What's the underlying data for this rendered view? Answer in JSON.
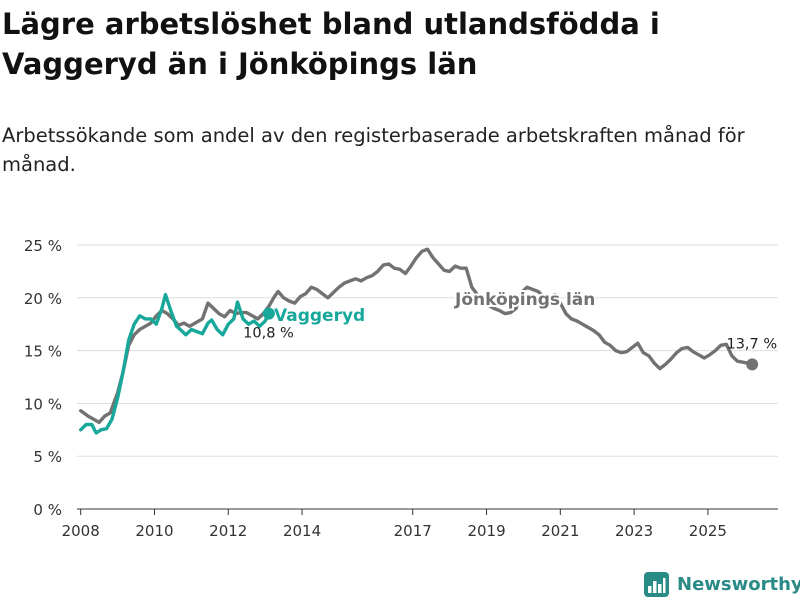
{
  "header": {
    "title": "Lägre arbetslöshet bland utlandsfödda i Vaggeryd än i Jönköpings län",
    "subtitle": "Arbetssökande som andel av den registerbaserade arbetskraften månad för månad."
  },
  "brand": {
    "name": "Newsworthy",
    "icon": "newsworthy-logo-icon",
    "color": "#2a8a86"
  },
  "chart_data": {
    "type": "line",
    "title": "Lägre arbetslöshet bland utlandsfödda i Vaggeryd än i Jönköpings län",
    "subtitle": "Arbetssökande som andel av den registerbaserade arbetskraften månad för månad.",
    "xlabel": "",
    "ylabel": "",
    "xlim": [
      2007.9,
      2026.9
    ],
    "ylim": [
      0,
      25
    ],
    "y_ticks": [
      0,
      5,
      10,
      15,
      20,
      25
    ],
    "y_tick_labels": [
      "0 %",
      "5 %",
      "10 %",
      "15 %",
      "20 %",
      "25 %"
    ],
    "x_ticks": [
      2008,
      2010,
      2012,
      2014,
      2017,
      2019,
      2021,
      2023,
      2025
    ],
    "x_tick_labels": [
      "2008",
      "2010",
      "2012",
      "2014",
      "2017",
      "2019",
      "2021",
      "2023",
      "2025"
    ],
    "grid": true,
    "series": [
      {
        "name": "Jönköpings län",
        "color": "#727272",
        "end_label": "13,7 %",
        "label_text": "Jönköpings län",
        "points": [
          [
            2008.0,
            9.3
          ],
          [
            2008.2,
            8.8
          ],
          [
            2008.35,
            8.5
          ],
          [
            2008.5,
            8.2
          ],
          [
            2008.65,
            8.8
          ],
          [
            2008.8,
            9.1
          ],
          [
            2009.0,
            11.0
          ],
          [
            2009.15,
            13.0
          ],
          [
            2009.3,
            15.5
          ],
          [
            2009.45,
            16.5
          ],
          [
            2009.6,
            17.0
          ],
          [
            2009.75,
            17.3
          ],
          [
            2009.9,
            17.6
          ],
          [
            2010.05,
            18.3
          ],
          [
            2010.2,
            18.8
          ],
          [
            2010.35,
            18.5
          ],
          [
            2010.5,
            18.0
          ],
          [
            2010.65,
            17.4
          ],
          [
            2010.8,
            17.6
          ],
          [
            2010.95,
            17.3
          ],
          [
            2011.1,
            17.6
          ],
          [
            2011.3,
            18.0
          ],
          [
            2011.45,
            19.5
          ],
          [
            2011.6,
            19.0
          ],
          [
            2011.75,
            18.5
          ],
          [
            2011.9,
            18.2
          ],
          [
            2012.05,
            18.8
          ],
          [
            2012.2,
            18.5
          ],
          [
            2012.35,
            18.6
          ],
          [
            2012.5,
            18.6
          ],
          [
            2012.65,
            18.3
          ],
          [
            2012.8,
            18.0
          ],
          [
            2012.95,
            18.5
          ],
          [
            2013.1,
            19.2
          ],
          [
            2013.25,
            20.1
          ],
          [
            2013.35,
            20.6
          ],
          [
            2013.5,
            20.0
          ],
          [
            2013.65,
            19.7
          ],
          [
            2013.8,
            19.5
          ],
          [
            2013.95,
            20.1
          ],
          [
            2014.1,
            20.4
          ],
          [
            2014.25,
            21.0
          ],
          [
            2014.4,
            20.8
          ],
          [
            2014.55,
            20.4
          ],
          [
            2014.7,
            20.0
          ],
          [
            2014.85,
            20.5
          ],
          [
            2015.0,
            21.0
          ],
          [
            2015.15,
            21.4
          ],
          [
            2015.3,
            21.6
          ],
          [
            2015.45,
            21.8
          ],
          [
            2015.6,
            21.6
          ],
          [
            2015.75,
            21.9
          ],
          [
            2015.9,
            22.1
          ],
          [
            2016.05,
            22.5
          ],
          [
            2016.2,
            23.1
          ],
          [
            2016.35,
            23.2
          ],
          [
            2016.5,
            22.8
          ],
          [
            2016.65,
            22.7
          ],
          [
            2016.8,
            22.3
          ],
          [
            2016.95,
            23.0
          ],
          [
            2017.1,
            23.8
          ],
          [
            2017.25,
            24.4
          ],
          [
            2017.4,
            24.6
          ],
          [
            2017.55,
            23.8
          ],
          [
            2017.7,
            23.2
          ],
          [
            2017.85,
            22.6
          ],
          [
            2018.0,
            22.5
          ],
          [
            2018.15,
            23.0
          ],
          [
            2018.3,
            22.8
          ],
          [
            2018.45,
            22.8
          ],
          [
            2018.6,
            21.0
          ],
          [
            2018.75,
            20.3
          ],
          [
            2018.9,
            19.8
          ],
          [
            2019.05,
            19.3
          ],
          [
            2019.2,
            19.0
          ],
          [
            2019.35,
            18.8
          ],
          [
            2019.5,
            18.5
          ],
          [
            2019.65,
            18.6
          ],
          [
            2019.8,
            19.0
          ],
          [
            2019.95,
            20.5
          ],
          [
            2020.1,
            21.0
          ],
          [
            2020.25,
            20.8
          ],
          [
            2020.4,
            20.6
          ],
          [
            2020.55,
            20.1
          ],
          [
            2020.7,
            20.0
          ],
          [
            2020.85,
            20.3
          ],
          [
            2021.0,
            19.5
          ],
          [
            2021.15,
            18.5
          ],
          [
            2021.3,
            18.0
          ],
          [
            2021.45,
            17.8
          ],
          [
            2021.6,
            17.5
          ],
          [
            2021.75,
            17.2
          ],
          [
            2021.9,
            16.9
          ],
          [
            2022.05,
            16.5
          ],
          [
            2022.2,
            15.8
          ],
          [
            2022.35,
            15.5
          ],
          [
            2022.5,
            15.0
          ],
          [
            2022.65,
            14.8
          ],
          [
            2022.8,
            14.9
          ],
          [
            2022.95,
            15.3
          ],
          [
            2023.1,
            15.7
          ],
          [
            2023.25,
            14.8
          ],
          [
            2023.4,
            14.5
          ],
          [
            2023.55,
            13.8
          ],
          [
            2023.7,
            13.3
          ],
          [
            2023.85,
            13.7
          ],
          [
            2024.0,
            14.2
          ],
          [
            2024.15,
            14.8
          ],
          [
            2024.3,
            15.2
          ],
          [
            2024.45,
            15.3
          ],
          [
            2024.6,
            14.9
          ],
          [
            2024.75,
            14.6
          ],
          [
            2024.9,
            14.3
          ],
          [
            2025.05,
            14.6
          ],
          [
            2025.2,
            15.0
          ],
          [
            2025.35,
            15.5
          ],
          [
            2025.5,
            15.6
          ],
          [
            2025.65,
            14.5
          ],
          [
            2025.8,
            14.0
          ],
          [
            2025.95,
            13.9
          ],
          [
            2026.1,
            13.8
          ],
          [
            2026.2,
            13.7
          ]
        ]
      },
      {
        "name": "Vaggeryd",
        "color": "#17a89b",
        "end_label": "10,8 %",
        "label_text": "Vaggeryd",
        "points": [
          [
            2008.0,
            7.5
          ],
          [
            2008.15,
            8.0
          ],
          [
            2008.3,
            8.0
          ],
          [
            2008.42,
            7.2
          ],
          [
            2008.55,
            7.5
          ],
          [
            2008.7,
            7.6
          ],
          [
            2008.85,
            8.5
          ],
          [
            2009.0,
            10.5
          ],
          [
            2009.15,
            13.0
          ],
          [
            2009.3,
            16.0
          ],
          [
            2009.45,
            17.5
          ],
          [
            2009.6,
            18.3
          ],
          [
            2009.75,
            18.0
          ],
          [
            2009.9,
            18.0
          ],
          [
            2010.05,
            17.5
          ],
          [
            2010.2,
            19.0
          ],
          [
            2010.3,
            20.3
          ],
          [
            2010.45,
            18.7
          ],
          [
            2010.6,
            17.3
          ],
          [
            2010.7,
            17.0
          ],
          [
            2010.85,
            16.5
          ],
          [
            2011.0,
            17.0
          ],
          [
            2011.15,
            16.8
          ],
          [
            2011.3,
            16.6
          ],
          [
            2011.45,
            17.6
          ],
          [
            2011.55,
            17.9
          ],
          [
            2011.7,
            17.0
          ],
          [
            2011.85,
            16.5
          ],
          [
            2012.0,
            17.5
          ],
          [
            2012.15,
            18.0
          ],
          [
            2012.25,
            19.6
          ],
          [
            2012.4,
            18.0
          ],
          [
            2012.55,
            17.5
          ],
          [
            2012.7,
            17.8
          ],
          [
            2012.85,
            17.3
          ],
          [
            2013.0,
            17.8
          ],
          [
            2013.1,
            18.5
          ]
        ]
      }
    ]
  }
}
